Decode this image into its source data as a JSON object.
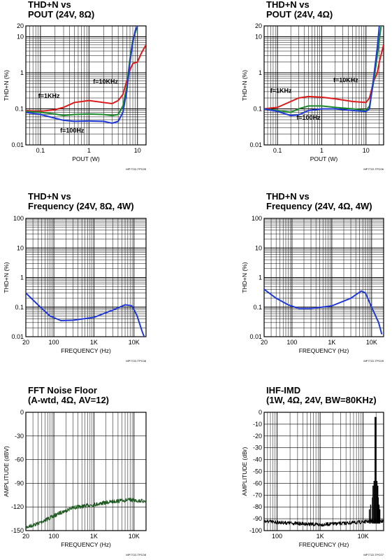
{
  "chart_data": [
    {
      "id": "p1",
      "type": "line",
      "title": "THD+N vs",
      "subtitle": "POUT (24V, 8Ω)",
      "xlabel": "POUT (W)",
      "ylabel": "THD+N (%)",
      "xscale": "log",
      "yscale": "log",
      "xlim": [
        0.05,
        15
      ],
      "ylim": [
        0.01,
        20
      ],
      "xticks": [
        0.1,
        1,
        10
      ],
      "xticklabels": [
        "0.1",
        "1",
        "10"
      ],
      "yticks": [
        0.01,
        0.1,
        1,
        10,
        20
      ],
      "yticklabels": [
        "0.01",
        "0.1",
        "1",
        "10",
        "20"
      ],
      "footnote": "MP7722-TPC05",
      "series": [
        {
          "name": "f=10KHz",
          "color": "#dd1a1a",
          "points": [
            [
              0.05,
              0.09
            ],
            [
              0.1,
              0.085
            ],
            [
              0.2,
              0.095
            ],
            [
              0.3,
              0.11
            ],
            [
              0.5,
              0.15
            ],
            [
              1,
              0.17
            ],
            [
              2,
              0.15
            ],
            [
              3,
              0.14
            ],
            [
              4,
              0.17
            ],
            [
              5,
              0.25
            ],
            [
              6,
              0.6
            ],
            [
              7,
              1.2
            ],
            [
              8,
              1.8
            ],
            [
              10,
              2.0
            ],
            [
              12,
              3.5
            ],
            [
              15,
              6
            ]
          ]
        },
        {
          "name": "f=1KHz",
          "color": "#1b8a2a",
          "points": [
            [
              0.05,
              0.085
            ],
            [
              0.1,
              0.08
            ],
            [
              0.2,
              0.072
            ],
            [
              0.3,
              0.065
            ],
            [
              0.5,
              0.07
            ],
            [
              1,
              0.072
            ],
            [
              2,
              0.07
            ],
            [
              3,
              0.065
            ],
            [
              4,
              0.07
            ],
            [
              5,
              0.12
            ],
            [
              6,
              0.4
            ],
            [
              7,
              2.5
            ],
            [
              8,
              8
            ],
            [
              10,
              20
            ]
          ]
        },
        {
          "name": "f=100Hz",
          "color": "#1f39d8",
          "points": [
            [
              0.05,
              0.08
            ],
            [
              0.1,
              0.07
            ],
            [
              0.2,
              0.055
            ],
            [
              0.3,
              0.048
            ],
            [
              0.5,
              0.045
            ],
            [
              1,
              0.046
            ],
            [
              2,
              0.045
            ],
            [
              3,
              0.04
            ],
            [
              4,
              0.045
            ],
            [
              5,
              0.08
            ],
            [
              6,
              0.3
            ],
            [
              7,
              2
            ],
            [
              8,
              7
            ],
            [
              9,
              15
            ],
            [
              10,
              20
            ]
          ]
        }
      ],
      "annotations": [
        {
          "text": "f=10KHz",
          "x": 2.2,
          "y": 0.5
        },
        {
          "text": "f=1KHz",
          "x": 0.15,
          "y": 0.2
        },
        {
          "text": "f=100Hz",
          "x": 0.45,
          "y": 0.022
        }
      ]
    },
    {
      "id": "p2",
      "type": "line",
      "title": "THD+N vs",
      "subtitle": "POUT (24V, 4Ω)",
      "xlabel": "POUT (W)",
      "ylabel": "THD+N (%)",
      "xscale": "log",
      "yscale": "log",
      "xlim": [
        0.05,
        25
      ],
      "ylim": [
        0.01,
        20
      ],
      "xticks": [
        0.1,
        1,
        10
      ],
      "xticklabels": [
        "0.1",
        "1",
        "10"
      ],
      "yticks": [
        0.01,
        0.1,
        1,
        10,
        20
      ],
      "yticklabels": [
        "0.01",
        "0.1",
        "1",
        "10",
        "20"
      ],
      "footnote": "MP7722-TPC06",
      "series": [
        {
          "name": "f=10KHz",
          "color": "#dd1a1a",
          "points": [
            [
              0.05,
              0.1
            ],
            [
              0.1,
              0.11
            ],
            [
              0.2,
              0.16
            ],
            [
              0.3,
              0.2
            ],
            [
              0.5,
              0.22
            ],
            [
              1,
              0.21
            ],
            [
              2,
              0.19
            ],
            [
              5,
              0.16
            ],
            [
              10,
              0.15
            ],
            [
              12,
              0.2
            ],
            [
              15,
              0.6
            ],
            [
              18,
              1
            ],
            [
              20,
              2
            ],
            [
              25,
              6
            ]
          ]
        },
        {
          "name": "f=1KHz",
          "color": "#1b8a2a",
          "points": [
            [
              0.05,
              0.1
            ],
            [
              0.1,
              0.09
            ],
            [
              0.2,
              0.08
            ],
            [
              0.3,
              0.1
            ],
            [
              0.5,
              0.12
            ],
            [
              1,
              0.12
            ],
            [
              2,
              0.11
            ],
            [
              5,
              0.1
            ],
            [
              10,
              0.09
            ],
            [
              12,
              0.12
            ],
            [
              15,
              0.6
            ],
            [
              18,
              3
            ],
            [
              22,
              20
            ]
          ]
        },
        {
          "name": "f=100Hz",
          "color": "#1f39d8",
          "points": [
            [
              0.05,
              0.1
            ],
            [
              0.1,
              0.085
            ],
            [
              0.2,
              0.065
            ],
            [
              0.3,
              0.068
            ],
            [
              0.5,
              0.09
            ],
            [
              1,
              0.1
            ],
            [
              2,
              0.1
            ],
            [
              5,
              0.09
            ],
            [
              10,
              0.085
            ],
            [
              12,
              0.1
            ],
            [
              15,
              0.8
            ],
            [
              18,
              5
            ],
            [
              20,
              20
            ]
          ]
        }
      ],
      "annotations": [
        {
          "text": "f=10KHz",
          "x": 3.5,
          "y": 0.55
        },
        {
          "text": "f=1KHz",
          "x": 0.12,
          "y": 0.28
        },
        {
          "text": "f=100Hz",
          "x": 0.5,
          "y": 0.05
        }
      ]
    },
    {
      "id": "p3",
      "type": "line",
      "title": "THD+N vs",
      "subtitle": "Frequency (24V, 8Ω, 4W)",
      "xlabel": "FREQUENCY (Hz)",
      "ylabel": "THD+N (%)",
      "xscale": "log",
      "yscale": "log",
      "xlim": [
        20,
        20000
      ],
      "ylim": [
        0.01,
        100
      ],
      "xticks": [
        20,
        100,
        1000,
        10000
      ],
      "xticklabels": [
        "20",
        "100",
        "1K",
        "10K"
      ],
      "yticks": [
        0.01,
        0.1,
        1,
        10,
        100
      ],
      "yticklabels": [
        "0.01",
        "0.1",
        "1",
        "10",
        "100"
      ],
      "footnote": "MP7722-TPC08",
      "series": [
        {
          "name": "",
          "color": "#1f39d8",
          "points": [
            [
              20,
              0.3
            ],
            [
              40,
              0.12
            ],
            [
              80,
              0.05
            ],
            [
              150,
              0.035
            ],
            [
              300,
              0.036
            ],
            [
              1000,
              0.045
            ],
            [
              3000,
              0.08
            ],
            [
              6000,
              0.12
            ],
            [
              9000,
              0.11
            ],
            [
              12000,
              0.05
            ],
            [
              16000,
              0.015
            ],
            [
              18000,
              0.01
            ]
          ]
        }
      ]
    },
    {
      "id": "p4",
      "type": "line",
      "title": "THD+N vs",
      "subtitle": "Frequency (24V, 4Ω, 4W)",
      "xlabel": "FREQUENCY (Hz)",
      "ylabel": "THD+N (%)",
      "xscale": "log",
      "yscale": "log",
      "xlim": [
        20,
        20000
      ],
      "ylim": [
        0.01,
        100
      ],
      "xticks": [
        20,
        100,
        1000,
        10000
      ],
      "xticklabels": [
        "20",
        "100",
        "1K",
        "10K"
      ],
      "yticks": [
        0.01,
        0.1,
        1,
        10,
        100
      ],
      "yticklabels": [
        "0.01",
        "0.1",
        "1",
        "10",
        "100"
      ],
      "footnote": "MP7722-TPC09",
      "series": [
        {
          "name": "",
          "color": "#1f39d8",
          "points": [
            [
              20,
              0.4
            ],
            [
              40,
              0.2
            ],
            [
              80,
              0.12
            ],
            [
              150,
              0.09
            ],
            [
              300,
              0.09
            ],
            [
              1000,
              0.11
            ],
            [
              3000,
              0.2
            ],
            [
              5500,
              0.35
            ],
            [
              7000,
              0.3
            ],
            [
              10000,
              0.1
            ],
            [
              15000,
              0.03
            ],
            [
              18000,
              0.012
            ]
          ]
        }
      ]
    },
    {
      "id": "p5",
      "type": "line",
      "title": "FFT Noise Floor",
      "subtitle": "(A-wtd, 4Ω, AV=12)",
      "xlabel": "FREQUENCY (Hz)",
      "ylabel": "AMPLITUDE (dBV)",
      "xscale": "log",
      "yscale": "linear",
      "xlim": [
        20,
        20000
      ],
      "ylim": [
        -150,
        0
      ],
      "xticks": [
        20,
        100,
        1000,
        10000
      ],
      "xticklabels": [
        "20",
        "100",
        "1K",
        "10K"
      ],
      "yticks": [
        -150,
        -120,
        -90,
        -60,
        -30,
        0
      ],
      "yticklabels": [
        "-150",
        "-120",
        "-90",
        "-60",
        "-30",
        "0"
      ],
      "footnote": "MP7722-TPC08",
      "series": [
        {
          "name": "",
          "color": "#1f5a22",
          "noise": 2.5,
          "points": [
            [
              20,
              -146
            ],
            [
              40,
              -141
            ],
            [
              80,
              -134
            ],
            [
              150,
              -127
            ],
            [
              300,
              -121
            ],
            [
              1000,
              -117
            ],
            [
              3000,
              -113
            ],
            [
              8000,
              -111
            ],
            [
              20000,
              -113
            ]
          ]
        }
      ]
    },
    {
      "id": "p6",
      "type": "line",
      "title": "IHF-IMD",
      "subtitle": "(1W, 4Ω, 24V, BW=80KHz)",
      "xlabel": "FREQUENCY (Hz)",
      "ylabel": "AMPLITUDE (dBr)",
      "xscale": "log",
      "yscale": "linear",
      "xlim": [
        50,
        30000
      ],
      "ylim": [
        -100,
        0
      ],
      "xticks": [
        100,
        1000,
        10000
      ],
      "xticklabels": [
        "100",
        "1K",
        "10K"
      ],
      "yticks": [
        0,
        -10,
        -20,
        -30,
        -40,
        -50,
        -60,
        -70,
        -80,
        -90,
        -100
      ],
      "yticklabels": [
        "0",
        "-10",
        "-20",
        "-30",
        "-40",
        "-50",
        "-60",
        "-70",
        "-80",
        "-90",
        "-100"
      ],
      "footnote": "MP7722-TPC07",
      "series": [
        {
          "name": "",
          "color": "#000000",
          "noise": 1.5,
          "points": [
            [
              50,
              -92
            ],
            [
              100,
              -93
            ],
            [
              300,
              -94
            ],
            [
              1000,
              -95
            ],
            [
              3000,
              -94
            ],
            [
              8000,
              -93
            ],
            [
              15000,
              -92
            ],
            [
              30000,
              -92
            ]
          ]
        }
      ],
      "spikes": [
        [
          19000,
          -4
        ],
        [
          20000,
          -4
        ],
        [
          18000,
          -58
        ],
        [
          21000,
          -58
        ],
        [
          17000,
          -62
        ],
        [
          22000,
          -62
        ],
        [
          16500,
          -72
        ],
        [
          22500,
          -72
        ],
        [
          15000,
          -78
        ],
        [
          23500,
          -78
        ],
        [
          14000,
          -82
        ],
        [
          24500,
          -82
        ]
      ]
    }
  ]
}
